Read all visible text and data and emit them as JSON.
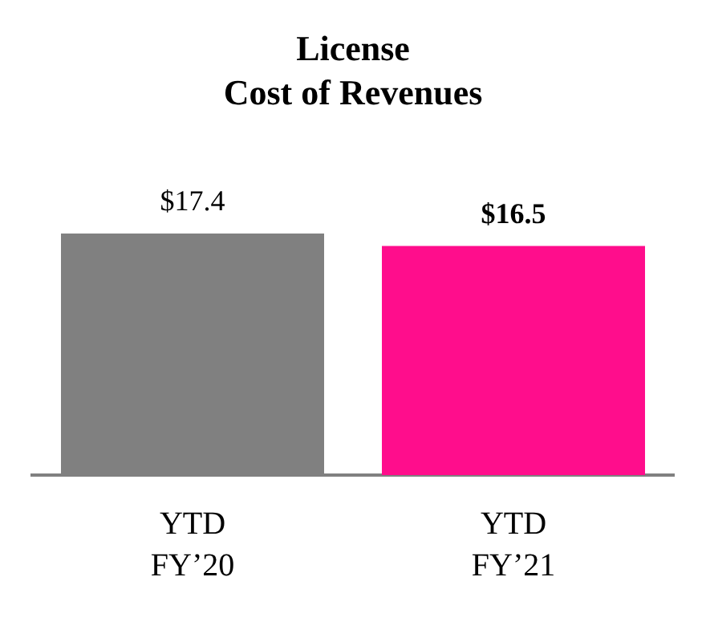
{
  "chart_data": {
    "type": "bar",
    "title": "License\nCost of Revenues",
    "categories": [
      "YTD\nFY’20",
      "YTD\nFY’21"
    ],
    "values": [
      17.4,
      16.5
    ],
    "colors": [
      "#808080",
      "#ff0d8c"
    ],
    "value_labels": [
      "$17.4",
      "$16.5"
    ],
    "tick_labels": "x",
    "grid": false,
    "legend": false
  }
}
